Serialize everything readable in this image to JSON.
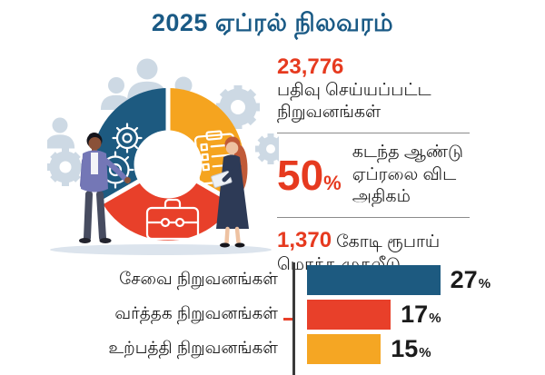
{
  "title": "2025 ஏப்ரல் நிலவரம்",
  "colors": {
    "title": "#1a5a85",
    "accent_red": "#e63a1f",
    "text_dark": "#222222",
    "donut_blue": "#1d5a80",
    "donut_orange": "#f5a41f",
    "donut_red": "#e8402a",
    "silhouette": "#cdd9e4",
    "ground": "#dce4ed",
    "divider": "#8c8c8c",
    "axis": "#3a3a3a"
  },
  "stats": {
    "registered": {
      "value": "23,776",
      "lines": [
        "பதிவு செய்யப்பட்ட",
        "நிறுவனங்கள்"
      ]
    },
    "growth": {
      "value": "50",
      "unit": "%",
      "lines": [
        "கடந்த ஆண்டு",
        "ஏப்ரலை விட",
        "அதிகம்"
      ]
    },
    "investment": {
      "value": "1,370",
      "value_suffix": "கோடி ரூபாய்",
      "line2": "மொத்த முதலீடு"
    }
  },
  "illustration": {
    "icons": [
      "gears-icon",
      "checklist-icon",
      "briefcase-icon"
    ],
    "figures": [
      "man-presenting",
      "woman-holding-laptop"
    ],
    "donut_segment_colors": [
      "#1d5a80",
      "#f5a41f",
      "#e8402a"
    ]
  },
  "chart_data": {
    "type": "bar",
    "orientation": "horizontal",
    "title": "",
    "categories": [
      "சேவை நிறுவனங்கள்",
      "வர்த்தக நிறுவனங்கள்",
      "உற்பத்தி நிறுவனங்கள்"
    ],
    "values": [
      27,
      17,
      15
    ],
    "unit": "%",
    "bar_colors": [
      "#1d5a80",
      "#e8402a",
      "#f5a623"
    ],
    "xlim": [
      0,
      30
    ],
    "grid": false,
    "legend": false,
    "value_labels": [
      "27%",
      "17%",
      "15%"
    ]
  }
}
